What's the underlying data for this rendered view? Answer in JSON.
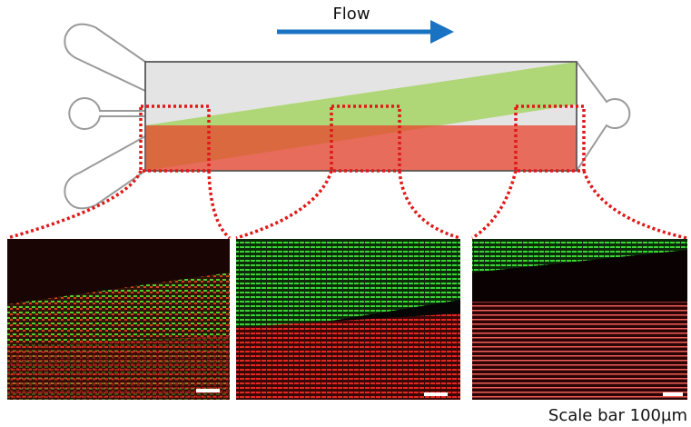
{
  "labels": {
    "flow": "Flow",
    "scale_bar": "Scale bar 100µm"
  }
}
